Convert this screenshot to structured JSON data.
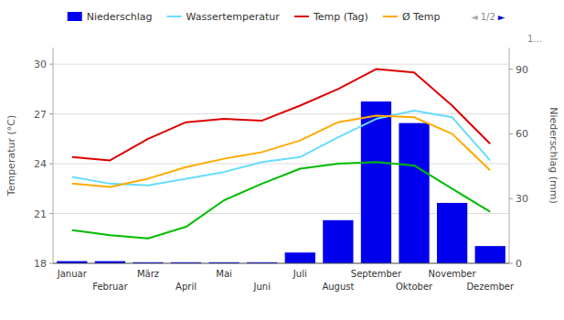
{
  "chart_data": {
    "type": "combo",
    "ylabel": "Temperatur (°C)",
    "y2label": "Niederschlag (mm)",
    "categories": [
      "Januar",
      "Februar",
      "März",
      "April",
      "Mai",
      "Juni",
      "Juli",
      "August",
      "September",
      "Oktober",
      "November",
      "Dezember"
    ],
    "series": [
      {
        "name": "Niederschlag",
        "type": "bar",
        "axis": "y2",
        "color": "#0000ee",
        "values": [
          1,
          1,
          0.5,
          0.5,
          0.5,
          0.5,
          5,
          20,
          75,
          65,
          28,
          8
        ]
      },
      {
        "name": "Wassertemperatur",
        "type": "line",
        "color": "#66ddff",
        "values": [
          23.2,
          22.8,
          22.7,
          23.1,
          23.5,
          24.1,
          24.4,
          25.6,
          26.7,
          27.2,
          26.8,
          24.2
        ]
      },
      {
        "name": "Temp (Tag)",
        "type": "line",
        "color": "#dd0000",
        "values": [
          24.4,
          24.2,
          25.5,
          26.5,
          26.7,
          26.6,
          27.5,
          28.5,
          29.7,
          29.5,
          27.5,
          25.2
        ]
      },
      {
        "name": "Ø Temp",
        "type": "line",
        "color": "#ffaa00",
        "values": [
          22.8,
          22.6,
          23.1,
          23.8,
          24.3,
          24.7,
          25.4,
          26.5,
          26.9,
          26.8,
          25.8,
          23.6
        ]
      },
      {
        "type": "line",
        "color": "#00bb00",
        "values": [
          20.0,
          19.7,
          19.5,
          20.2,
          21.8,
          22.8,
          23.7,
          24.0,
          24.1,
          23.9,
          22.5,
          21.1
        ]
      }
    ],
    "ylim": [
      18,
      31
    ],
    "yticks": [
      18,
      21,
      24,
      27,
      30
    ],
    "y2lim": [
      0,
      100
    ],
    "y2ticks": [
      0,
      30,
      60,
      90
    ],
    "grid": true,
    "legend": "top",
    "annotations": [
      "◄",
      "1/2",
      "►",
      "1..."
    ]
  }
}
